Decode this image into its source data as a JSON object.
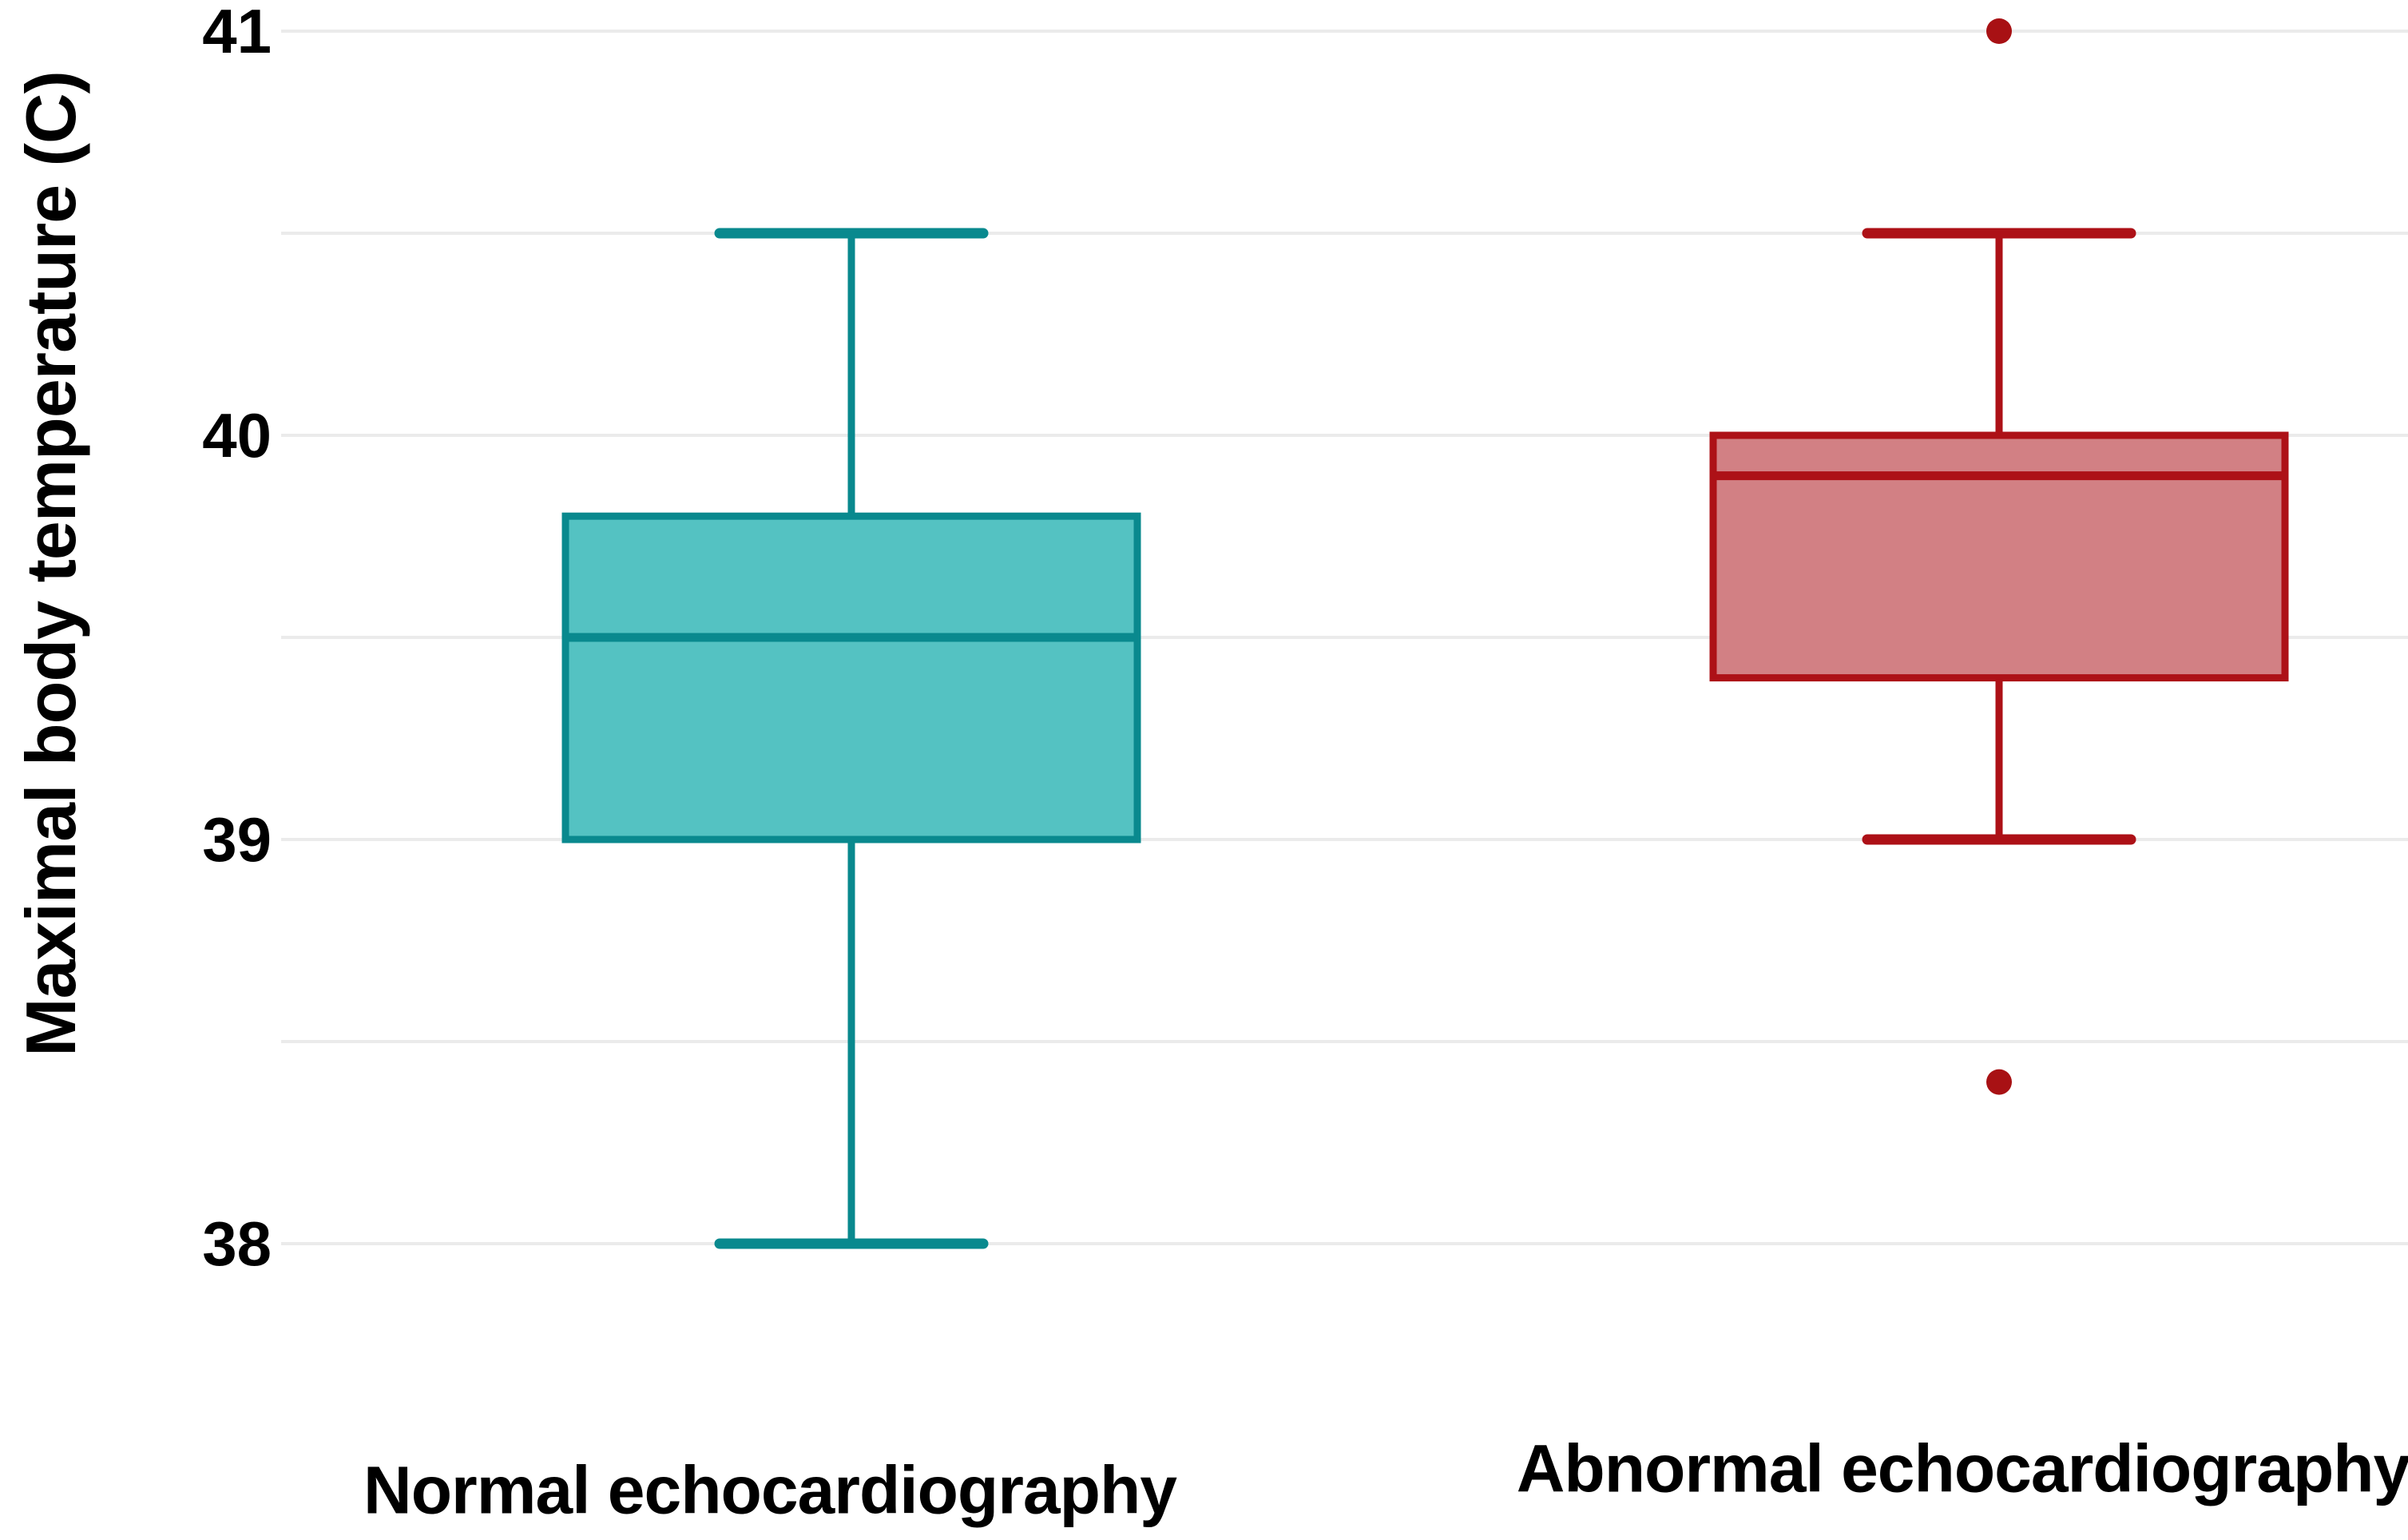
{
  "chart_data": {
    "type": "boxplot",
    "title": "",
    "xlabel": "",
    "ylabel": "Maximal body temperature (C)",
    "ylim": [
      37.72,
      41.08
    ],
    "yticks": [
      41,
      40,
      39,
      38
    ],
    "gridlines": [
      41,
      40.5,
      40,
      39.5,
      39,
      38.5,
      38
    ],
    "gridline_step": 0.5,
    "grid": "on",
    "legend_position": "none",
    "categories": [
      "Normal echocardiography",
      "Abnormal echocardiography"
    ],
    "series": [
      {
        "name": "Normal echocardiography",
        "whisker_low": 38.0,
        "q1": 39.0,
        "median": 39.5,
        "q3": 39.8,
        "whisker_high": 40.5,
        "outliers": [],
        "fill": "#54c2c2",
        "stroke": "#09898e",
        "outlier_color": "#09898e"
      },
      {
        "name": "Abnormal echocardiography",
        "whisker_low": 39.0,
        "q1": 39.4,
        "median": 39.9,
        "q3": 40.0,
        "whisker_high": 40.5,
        "outliers": [
          41.0,
          38.4
        ],
        "fill": "#d28084",
        "stroke": "#ad1117",
        "outlier_color": "#a81114"
      }
    ]
  },
  "colors": {
    "background": "#ffffff",
    "gridline": "#ebebeb",
    "text": "#000000"
  }
}
